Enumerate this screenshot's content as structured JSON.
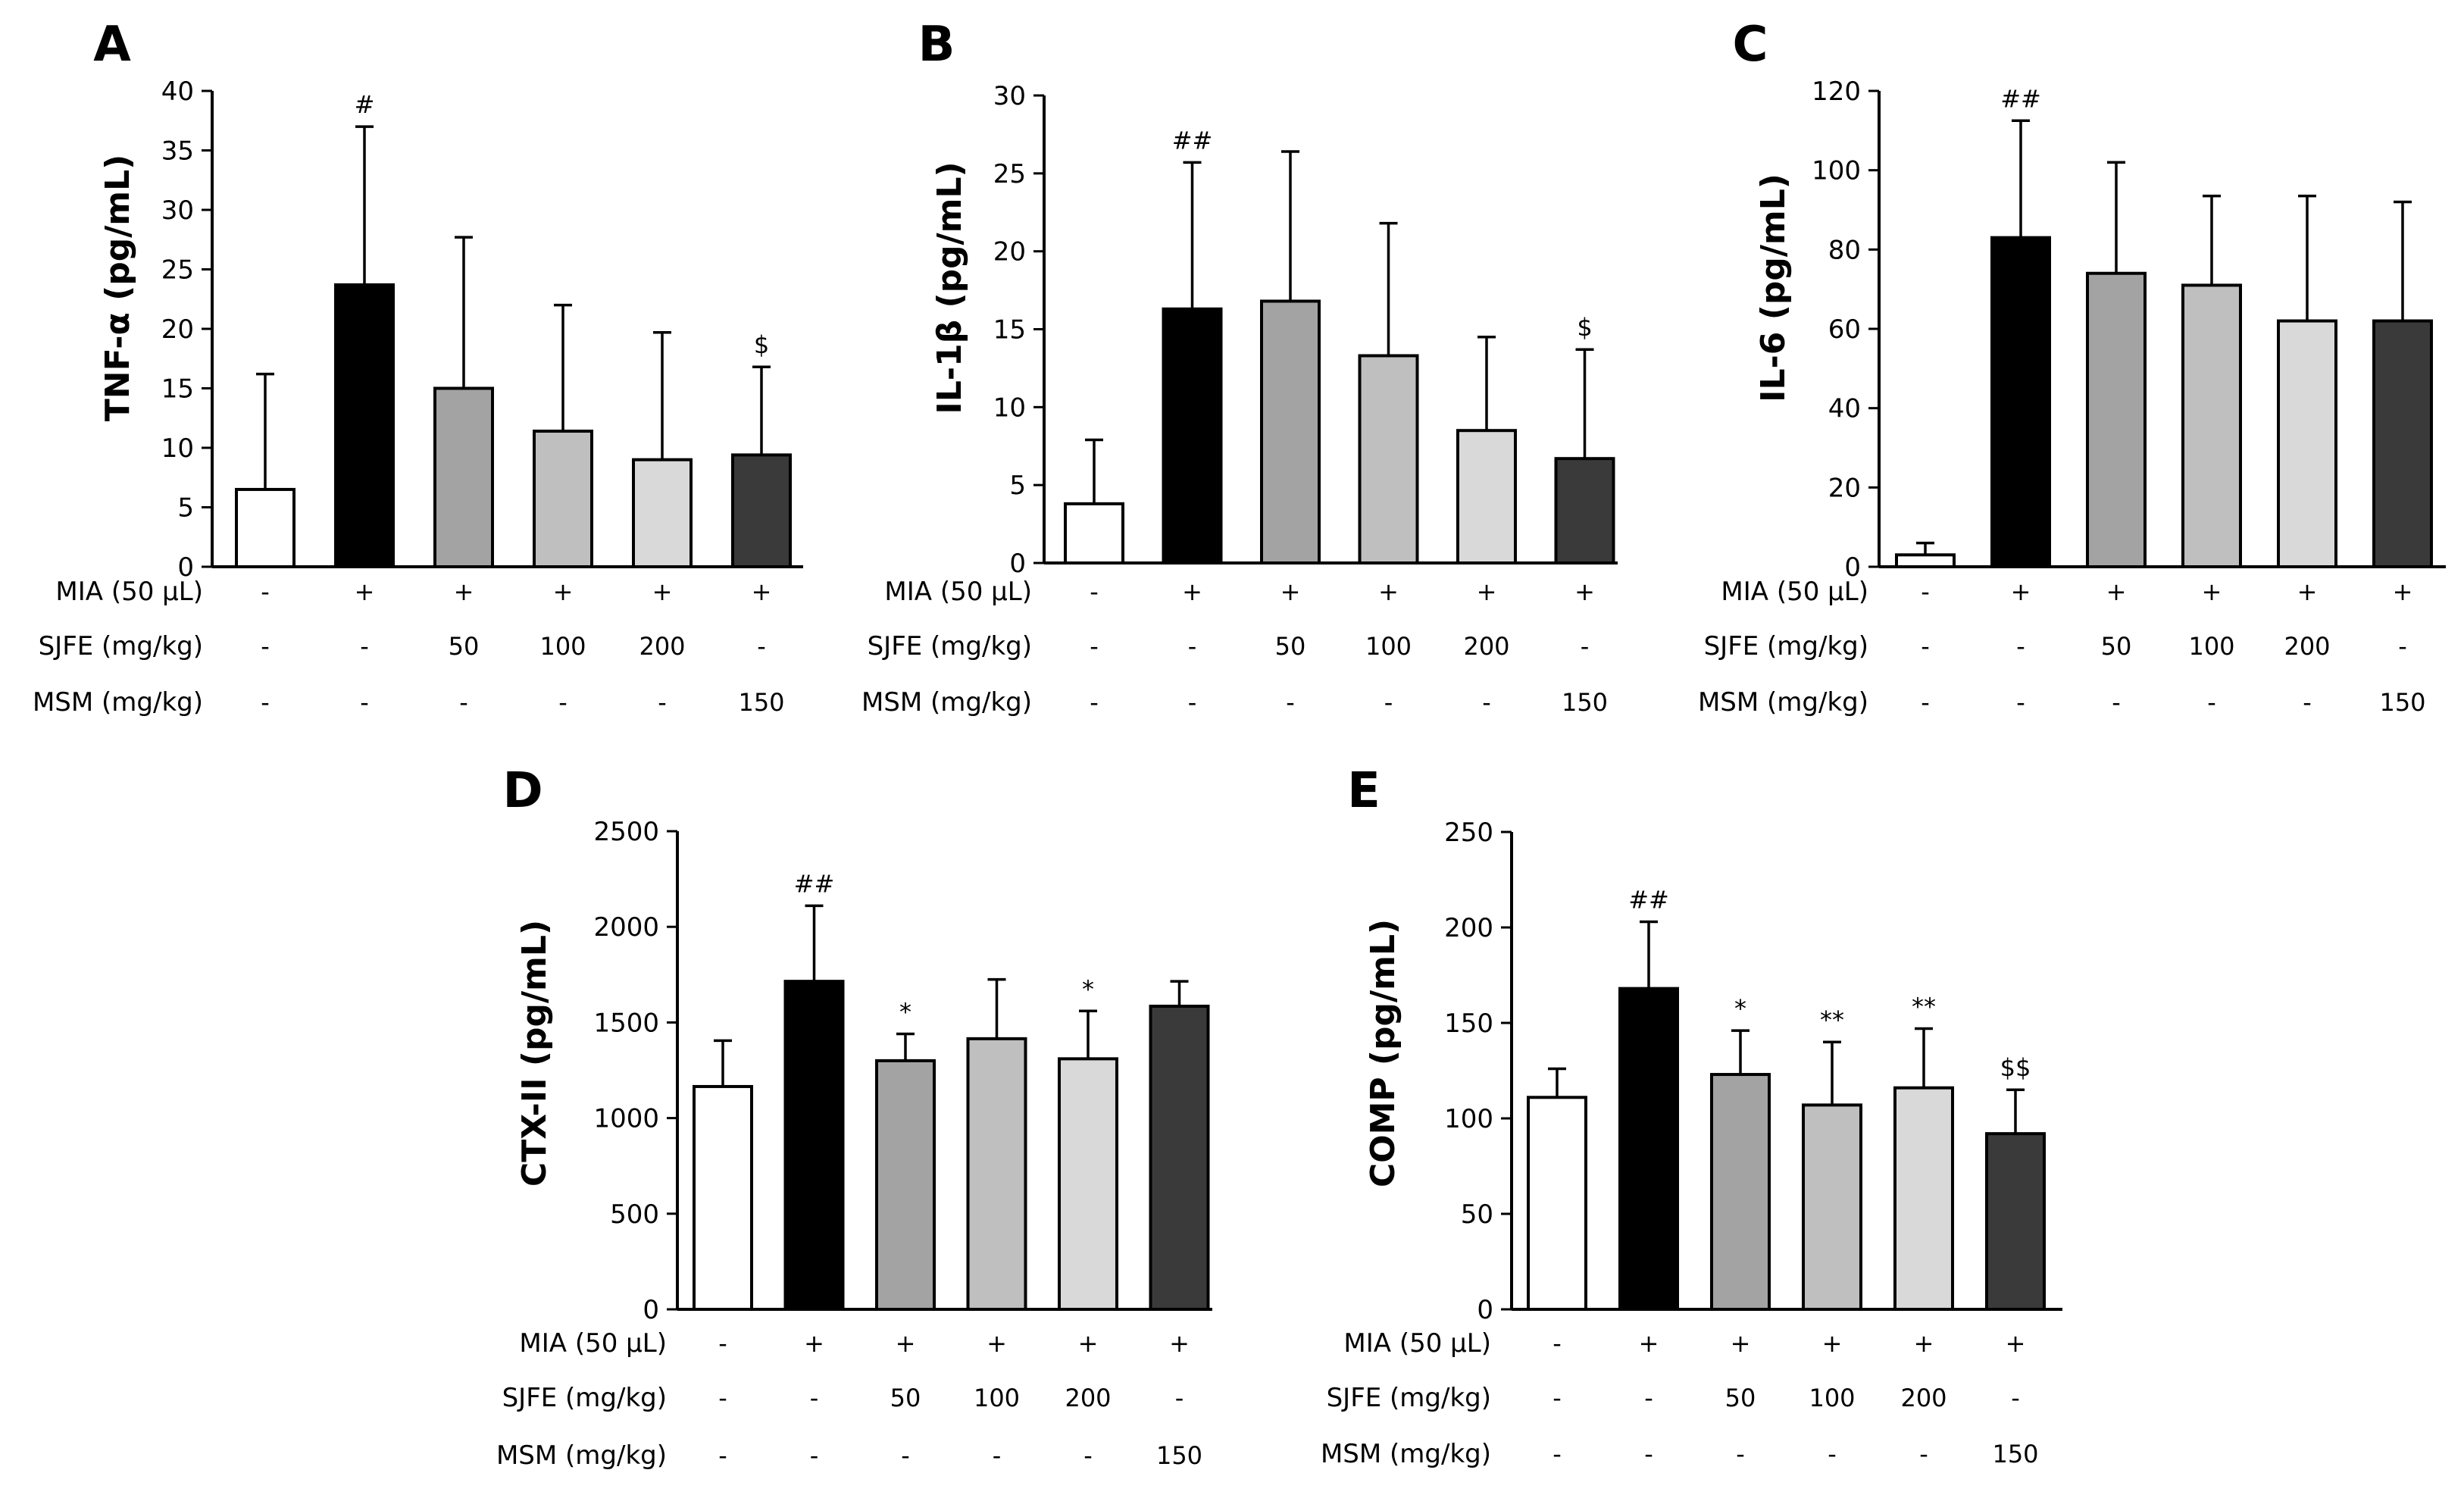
{
  "chart_data": [
    {
      "type": "bar",
      "panel": "A",
      "ylabel": "TNF-α (pg/mL)",
      "ylim": [
        0,
        40
      ],
      "yticks": [
        0,
        5,
        10,
        15,
        20,
        25,
        30,
        35,
        40
      ],
      "values": [
        6.5,
        23.7,
        15.0,
        11.4,
        9.0,
        9.4
      ],
      "errors": [
        9.7,
        13.3,
        12.7,
        10.6,
        10.7,
        7.4
      ],
      "annotations": [
        "",
        "#",
        "",
        "",
        "",
        "$"
      ],
      "fills": [
        "#ffffff",
        "#000000",
        "#a3a3a3",
        "#bfbfbf",
        "#d9d9d9",
        "#3a3a3a"
      ]
    },
    {
      "type": "bar",
      "panel": "B",
      "ylabel": "IL-1β (pg/mL)",
      "ylim": [
        0,
        30
      ],
      "yticks": [
        0,
        5,
        10,
        15,
        20,
        25,
        30
      ],
      "values": [
        3.8,
        16.3,
        16.8,
        13.3,
        8.5,
        6.7
      ],
      "errors": [
        4.1,
        9.4,
        9.6,
        8.5,
        6.0,
        7.0
      ],
      "annotations": [
        "",
        "##",
        "",
        "",
        "",
        "$"
      ],
      "fills": [
        "#ffffff",
        "#000000",
        "#a3a3a3",
        "#bfbfbf",
        "#d9d9d9",
        "#3a3a3a"
      ]
    },
    {
      "type": "bar",
      "panel": "C",
      "ylabel": "IL-6 (pg/mL)",
      "ylim": [
        0,
        120
      ],
      "yticks": [
        0,
        20,
        40,
        60,
        80,
        100,
        120
      ],
      "values": [
        3.0,
        83.0,
        74.0,
        71.0,
        62.0,
        62.0
      ],
      "errors": [
        3.0,
        29.5,
        28.0,
        22.5,
        31.5,
        30.0
      ],
      "annotations": [
        "",
        "##",
        "",
        "",
        "",
        ""
      ],
      "fills": [
        "#ffffff",
        "#000000",
        "#a3a3a3",
        "#bfbfbf",
        "#d9d9d9",
        "#3a3a3a"
      ]
    },
    {
      "type": "bar",
      "panel": "D",
      "ylabel": "CTX-II (pg/mL)",
      "ylim": [
        0,
        2500
      ],
      "yticks": [
        0,
        500,
        1000,
        1500,
        2000,
        2500
      ],
      "values": [
        1165,
        1715,
        1300,
        1415,
        1310,
        1585
      ],
      "errors": [
        240,
        395,
        140,
        310,
        250,
        130
      ],
      "annotations": [
        "",
        "##",
        "*",
        "",
        "*",
        ""
      ],
      "fills": [
        "#ffffff",
        "#000000",
        "#a3a3a3",
        "#bfbfbf",
        "#d9d9d9",
        "#3a3a3a"
      ]
    },
    {
      "type": "bar",
      "panel": "E",
      "ylabel": "COMP (pg/mL)",
      "ylim": [
        0,
        250
      ],
      "yticks": [
        0,
        50,
        100,
        150,
        200,
        250
      ],
      "values": [
        111,
        168,
        123,
        107,
        116,
        92
      ],
      "errors": [
        15,
        35,
        23,
        33,
        31,
        23
      ],
      "annotations": [
        "",
        "##",
        "*",
        "**",
        "**",
        "$$"
      ],
      "fills": [
        "#ffffff",
        "#000000",
        "#a3a3a3",
        "#bfbfbf",
        "#d9d9d9",
        "#3a3a3a"
      ]
    }
  ],
  "treatment_table": {
    "rows": [
      {
        "label": "MIA (50 μL)",
        "values": [
          "-",
          "+",
          "+",
          "+",
          "+",
          "+"
        ]
      },
      {
        "label": "SJFE (mg/kg)",
        "values": [
          "-",
          "-",
          "50",
          "100",
          "200",
          "-"
        ]
      },
      {
        "label": "MSM (mg/kg)",
        "values": [
          "-",
          "-",
          "-",
          "-",
          "-",
          "150"
        ]
      }
    ]
  }
}
